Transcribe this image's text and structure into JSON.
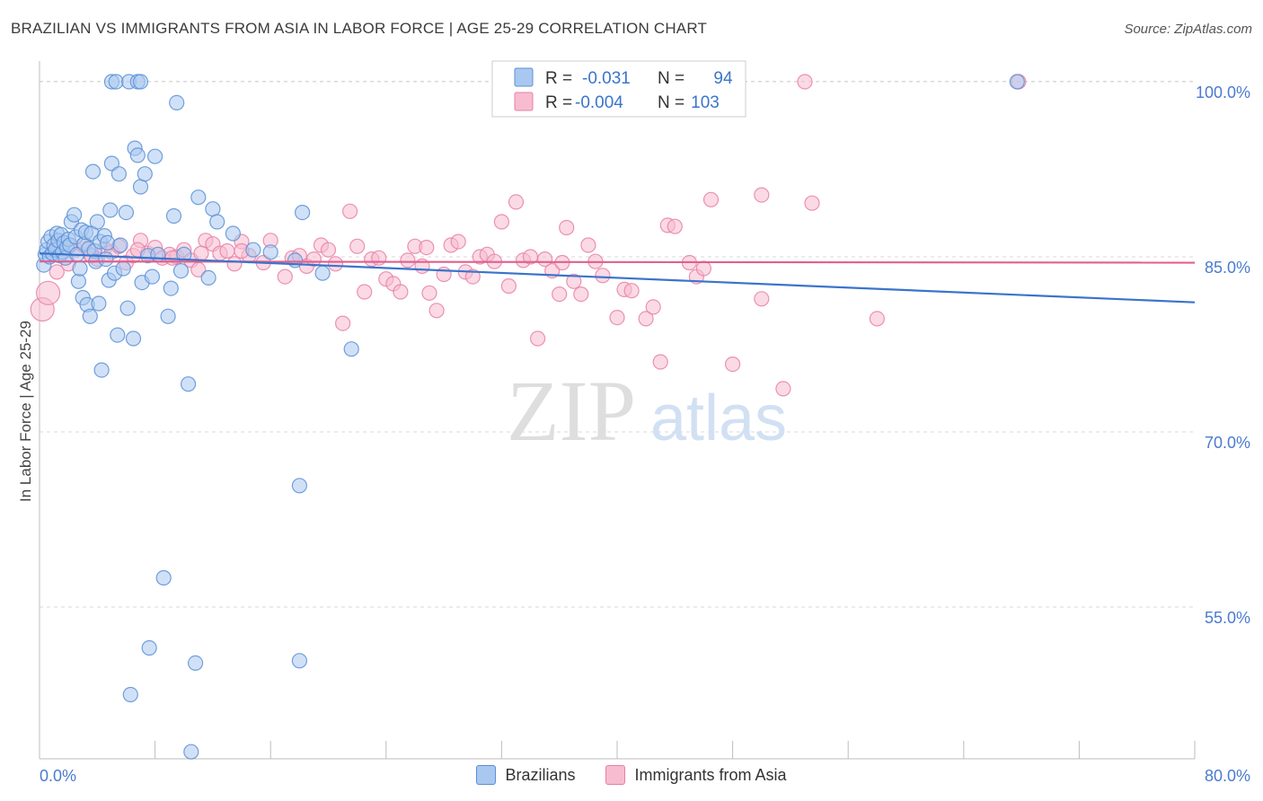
{
  "title": "BRAZILIAN VS IMMIGRANTS FROM ASIA IN LABOR FORCE | AGE 25-29 CORRELATION CHART",
  "source": "Source: ZipAtlas.com",
  "watermark": {
    "zip": "ZIP",
    "atlas": "atlas"
  },
  "colors": {
    "blue": "#5b8fd6",
    "blue_fill": "#a9c8f0",
    "blue_line": "#3a74cc",
    "pink": "#e880a6",
    "pink_fill": "#f7bcd0",
    "pink_line": "#e0608d",
    "tick": "#4a7bd0",
    "grid": "#d9d9d9"
  },
  "stats": [
    {
      "r_label": "R =",
      "r_value": "-0.031",
      "n_label": "N =",
      "n_value": "94"
    },
    {
      "r_label": "R =",
      "r_value": "-0.004",
      "n_label": "N =",
      "n_value": "103"
    }
  ],
  "chart_data": {
    "type": "scatter",
    "xlabel": "",
    "ylabel": "In Labor Force | Age 25-29",
    "xlim": [
      0,
      80
    ],
    "ylim": [
      42,
      103
    ],
    "x_tick_labels": [
      "0.0%",
      "80.0%"
    ],
    "y_ticks": [
      {
        "value": 100,
        "label": "100.0%"
      },
      {
        "value": 85,
        "label": "85.0%"
      },
      {
        "value": 70,
        "label": "70.0%"
      },
      {
        "value": 55,
        "label": "55.0%"
      }
    ],
    "grid": true,
    "legend_position": "bottom",
    "series": [
      {
        "name": "Brazilians",
        "trend": {
          "x": [
            0,
            80
          ],
          "y": [
            85.3,
            81.1
          ]
        },
        "points": [
          [
            0.3,
            84.3
          ],
          [
            0.4,
            85.2
          ],
          [
            0.5,
            85.6
          ],
          [
            0.6,
            86.3
          ],
          [
            0.7,
            85.0
          ],
          [
            0.8,
            86.7
          ],
          [
            0.9,
            85.3
          ],
          [
            1.0,
            86.0
          ],
          [
            1.1,
            85.6
          ],
          [
            1.2,
            87.0
          ],
          [
            1.3,
            86.4
          ],
          [
            1.4,
            85.1
          ],
          [
            1.5,
            86.9
          ],
          [
            1.6,
            85.4
          ],
          [
            1.7,
            86.2
          ],
          [
            1.8,
            84.9
          ],
          [
            1.9,
            85.8
          ],
          [
            2.0,
            86.5
          ],
          [
            2.1,
            86.0
          ],
          [
            2.2,
            88.0
          ],
          [
            2.4,
            88.6
          ],
          [
            2.5,
            86.7
          ],
          [
            2.6,
            85.2
          ],
          [
            2.7,
            82.9
          ],
          [
            2.8,
            84.0
          ],
          [
            2.9,
            87.3
          ],
          [
            3.0,
            81.5
          ],
          [
            3.1,
            86.1
          ],
          [
            3.2,
            87.1
          ],
          [
            3.3,
            80.9
          ],
          [
            3.4,
            85.7
          ],
          [
            3.5,
            79.9
          ],
          [
            3.6,
            87.0
          ],
          [
            3.7,
            92.3
          ],
          [
            3.8,
            85.5
          ],
          [
            3.9,
            84.6
          ],
          [
            4.0,
            88.0
          ],
          [
            4.1,
            81.0
          ],
          [
            4.2,
            86.3
          ],
          [
            4.3,
            75.3
          ],
          [
            4.5,
            86.8
          ],
          [
            4.6,
            84.8
          ],
          [
            4.7,
            86.2
          ],
          [
            4.8,
            83.0
          ],
          [
            4.9,
            89.0
          ],
          [
            5.0,
            93.0
          ],
          [
            5.2,
            83.6
          ],
          [
            5.4,
            78.3
          ],
          [
            5.5,
            92.1
          ],
          [
            5.6,
            86.0
          ],
          [
            5.8,
            84.0
          ],
          [
            6.0,
            88.8
          ],
          [
            6.1,
            80.6
          ],
          [
            6.3,
            47.5
          ],
          [
            6.5,
            78.0
          ],
          [
            6.6,
            94.3
          ],
          [
            6.8,
            93.7
          ],
          [
            7.0,
            91.0
          ],
          [
            7.1,
            82.8
          ],
          [
            7.3,
            92.1
          ],
          [
            7.5,
            85.1
          ],
          [
            7.6,
            51.5
          ],
          [
            7.8,
            83.3
          ],
          [
            8.0,
            93.6
          ],
          [
            8.2,
            85.2
          ],
          [
            8.6,
            57.5
          ],
          [
            8.9,
            79.9
          ],
          [
            9.1,
            82.3
          ],
          [
            9.3,
            88.5
          ],
          [
            9.5,
            98.2
          ],
          [
            9.8,
            83.8
          ],
          [
            10.0,
            85.2
          ],
          [
            10.3,
            74.1
          ],
          [
            10.5,
            42.6
          ],
          [
            10.8,
            50.2
          ],
          [
            11.0,
            90.1
          ],
          [
            11.7,
            83.2
          ],
          [
            12.0,
            89.1
          ],
          [
            12.3,
            88.0
          ],
          [
            13.4,
            87.0
          ],
          [
            14.8,
            85.6
          ],
          [
            16.0,
            85.4
          ],
          [
            17.7,
            84.7
          ],
          [
            18.0,
            65.4
          ],
          [
            18.0,
            50.4
          ],
          [
            18.2,
            88.8
          ],
          [
            19.6,
            83.6
          ],
          [
            21.6,
            77.1
          ],
          [
            5.0,
            100.0
          ],
          [
            5.3,
            100.0
          ],
          [
            6.2,
            100.0
          ],
          [
            6.8,
            100.0
          ],
          [
            7.0,
            100.0
          ],
          [
            67.7,
            100.0
          ]
        ]
      },
      {
        "name": "Immigrants from Asia",
        "trend": {
          "x": [
            0,
            80
          ],
          "y": [
            84.6,
            84.5
          ]
        },
        "points": [
          [
            0.2,
            80.5
          ],
          [
            0.6,
            81.9
          ],
          [
            1.2,
            83.7
          ],
          [
            2.0,
            84.4
          ],
          [
            2.5,
            85.6
          ],
          [
            3.0,
            86.0
          ],
          [
            3.5,
            85.2
          ],
          [
            4.0,
            84.8
          ],
          [
            4.5,
            85.7
          ],
          [
            5.0,
            85.4
          ],
          [
            5.5,
            85.9
          ],
          [
            6.0,
            84.5
          ],
          [
            6.5,
            85.1
          ],
          [
            7.0,
            86.4
          ],
          [
            7.5,
            85.3
          ],
          [
            8.0,
            85.8
          ],
          [
            8.5,
            84.9
          ],
          [
            9.0,
            85.2
          ],
          [
            9.5,
            85.0
          ],
          [
            10.0,
            85.6
          ],
          [
            10.5,
            84.7
          ],
          [
            11.0,
            83.9
          ],
          [
            11.5,
            86.4
          ],
          [
            12.0,
            86.1
          ],
          [
            12.5,
            85.3
          ],
          [
            13.0,
            85.5
          ],
          [
            13.5,
            84.4
          ],
          [
            14.0,
            86.3
          ],
          [
            14.5,
            85.1
          ],
          [
            15.5,
            84.5
          ],
          [
            16.0,
            86.4
          ],
          [
            17.0,
            83.3
          ],
          [
            17.5,
            84.9
          ],
          [
            18.0,
            85.1
          ],
          [
            18.5,
            84.2
          ],
          [
            19.0,
            84.8
          ],
          [
            19.5,
            86.0
          ],
          [
            20.0,
            85.6
          ],
          [
            20.5,
            84.4
          ],
          [
            21.0,
            79.3
          ],
          [
            21.5,
            88.9
          ],
          [
            22.0,
            85.9
          ],
          [
            22.5,
            82.0
          ],
          [
            23.0,
            84.8
          ],
          [
            23.5,
            84.9
          ],
          [
            24.0,
            83.1
          ],
          [
            24.5,
            82.7
          ],
          [
            25.0,
            82.0
          ],
          [
            25.5,
            84.7
          ],
          [
            26.0,
            85.9
          ],
          [
            26.5,
            84.2
          ],
          [
            27.0,
            81.9
          ],
          [
            27.5,
            80.4
          ],
          [
            28.0,
            83.5
          ],
          [
            28.5,
            86.0
          ],
          [
            29.0,
            86.3
          ],
          [
            29.5,
            83.7
          ],
          [
            30.0,
            83.3
          ],
          [
            30.5,
            85.0
          ],
          [
            31.0,
            85.2
          ],
          [
            31.5,
            84.6
          ],
          [
            32.0,
            88.0
          ],
          [
            32.5,
            82.5
          ],
          [
            33.0,
            89.7
          ],
          [
            33.5,
            84.7
          ],
          [
            34.0,
            85.0
          ],
          [
            34.5,
            78.0
          ],
          [
            35.0,
            84.8
          ],
          [
            35.5,
            83.8
          ],
          [
            36.0,
            81.8
          ],
          [
            36.5,
            87.5
          ],
          [
            37.0,
            82.9
          ],
          [
            37.5,
            81.8
          ],
          [
            38.0,
            86.0
          ],
          [
            38.5,
            84.6
          ],
          [
            39.0,
            83.4
          ],
          [
            40.0,
            79.8
          ],
          [
            40.5,
            82.2
          ],
          [
            41.0,
            82.1
          ],
          [
            42.0,
            79.7
          ],
          [
            42.5,
            80.7
          ],
          [
            43.0,
            76.0
          ],
          [
            43.5,
            87.7
          ],
          [
            44.0,
            87.6
          ],
          [
            45.0,
            84.5
          ],
          [
            45.5,
            83.3
          ],
          [
            46.0,
            84.0
          ],
          [
            46.5,
            89.9
          ],
          [
            48.0,
            75.8
          ],
          [
            50.0,
            90.3
          ],
          [
            50.0,
            81.4
          ],
          [
            51.5,
            73.7
          ],
          [
            53.5,
            89.6
          ],
          [
            58.0,
            79.7
          ],
          [
            53.0,
            100.0
          ],
          [
            67.8,
            100.0
          ],
          [
            11.2,
            85.3
          ],
          [
            6.8,
            85.6
          ],
          [
            14.0,
            85.5
          ],
          [
            3.6,
            85.1
          ],
          [
            9.2,
            84.9
          ],
          [
            26.8,
            85.8
          ],
          [
            36.2,
            84.5
          ]
        ]
      }
    ]
  },
  "legend": [
    {
      "label": "Brazilians"
    },
    {
      "label": "Immigrants from Asia"
    }
  ]
}
